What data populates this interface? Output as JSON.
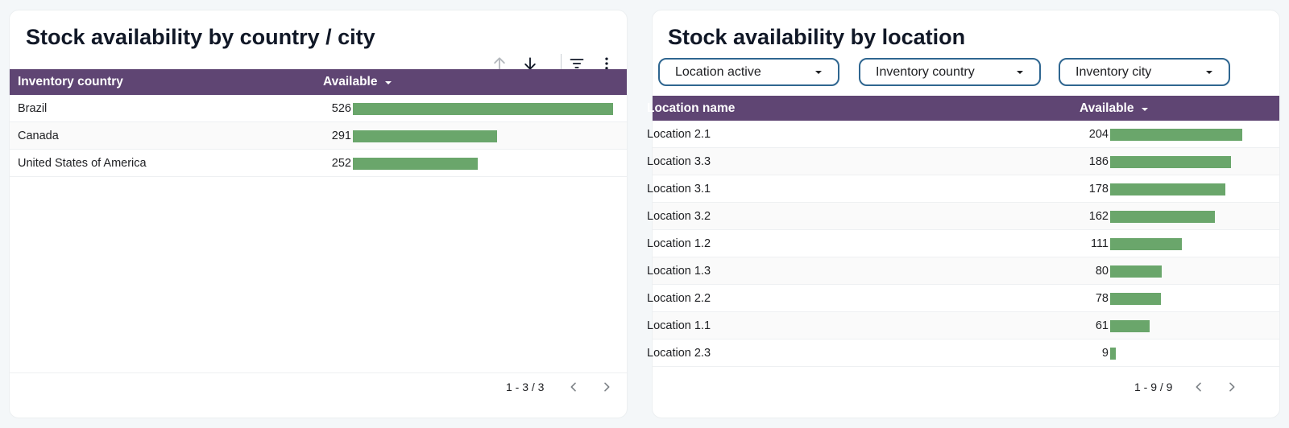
{
  "left_panel": {
    "title": "Stock availability by country / city",
    "toolbar": {
      "sort_ascending_icon": "arrow-up-icon",
      "sort_descending_icon": "arrow-down-icon",
      "filter_icon": "filter-icon",
      "more_icon": "more-vert-icon"
    },
    "table": {
      "columns": [
        "Inventory country",
        "Available"
      ],
      "rows": [
        {
          "name": "Brazil",
          "value": "526",
          "num": 526
        },
        {
          "name": "Canada",
          "value": "291",
          "num": 291
        },
        {
          "name": "United States of America",
          "value": "252",
          "num": 252
        }
      ],
      "max": 526
    },
    "pager": {
      "text": "1 - 3 / 3",
      "prev_icon": "chevron-left-icon",
      "next_icon": "chevron-right-icon"
    }
  },
  "right_panel": {
    "title": "Stock availability by location",
    "filters": [
      {
        "label": "Location active"
      },
      {
        "label": "Inventory country"
      },
      {
        "label": "Inventory city"
      }
    ],
    "table": {
      "columns": [
        "Location name",
        "Available"
      ],
      "rows": [
        {
          "name": "Location 2.1",
          "value": "204",
          "num": 204
        },
        {
          "name": "Location 3.3",
          "value": "186",
          "num": 186
        },
        {
          "name": "Location 3.1",
          "value": "178",
          "num": 178
        },
        {
          "name": "Location 3.2",
          "value": "162",
          "num": 162
        },
        {
          "name": "Location 1.2",
          "value": "111",
          "num": 111
        },
        {
          "name": "Location 1.3",
          "value": "80",
          "num": 80
        },
        {
          "name": "Location 2.2",
          "value": "78",
          "num": 78
        },
        {
          "name": "Location 1.1",
          "value": "61",
          "num": 61
        },
        {
          "name": "Location 2.3",
          "value": "9",
          "num": 9
        }
      ],
      "max": 204
    },
    "pager": {
      "text": "1 - 9 / 9",
      "prev_icon": "chevron-left-icon",
      "next_icon": "chevron-right-icon"
    }
  },
  "colors": {
    "header_bg": "#5f4573",
    "bar": "#6aa66b",
    "filter_border": "#2f6690"
  }
}
